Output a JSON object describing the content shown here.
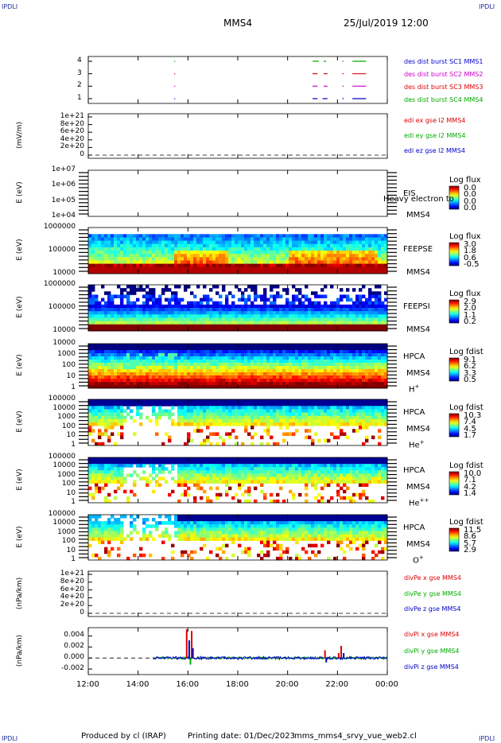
{
  "corners": {
    "tl": "IPDLI",
    "tr": "IPDLI",
    "bl": "IPDLI",
    "br": "IPDLI"
  },
  "header": {
    "mission": "MMS4",
    "date": "25/Jul/2019 12:00"
  },
  "footer": {
    "produced": "Produced by cl (IRAP)",
    "printing": "Printing date: 01/Dec/2023",
    "file": "mms_mms4_srvy_vue_web2.cl"
  },
  "x_ticks": [
    "12:00",
    "14:00",
    "16:00",
    "18:00",
    "20:00",
    "22:00",
    "00:00"
  ],
  "colors": {
    "blue": "#0000cc",
    "magenta": "#cc00cc",
    "red": "#dd0000",
    "green": "#00aa00"
  },
  "chart_data": [
    {
      "id": "burst",
      "type": "line",
      "yticks": [
        "4",
        "3",
        "2",
        "1"
      ],
      "legend": [
        {
          "label": "des dist burst SC1 MMS1",
          "color": "#0000cc"
        },
        {
          "label": "des dist burst SC2 MMS2",
          "color": "#cc00cc"
        },
        {
          "label": "des dist burst SC3 MMS3",
          "color": "#dd0000"
        },
        {
          "label": "des dist burst SC4 MMS4",
          "color": "#00aa00"
        }
      ],
      "segments": [
        {
          "y": 4,
          "color": "#00aa00",
          "ranges": [
            [
              21.0,
              21.25
            ],
            [
              21.45,
              21.55
            ],
            [
              22.2,
              22.25
            ],
            [
              22.6,
              23.15
            ]
          ]
        },
        {
          "y": 3,
          "color": "#dd0000",
          "ranges": [
            [
              21.0,
              21.2
            ],
            [
              21.45,
              21.6
            ],
            [
              22.2,
              22.25
            ],
            [
              22.6,
              23.15
            ]
          ]
        },
        {
          "y": 2,
          "color": "#cc00cc",
          "ranges": [
            [
              21.0,
              21.2
            ],
            [
              21.45,
              21.6
            ],
            [
              22.2,
              22.25
            ],
            [
              22.6,
              23.15
            ]
          ]
        },
        {
          "y": 1,
          "color": "#0000cc",
          "ranges": [
            [
              21.0,
              21.2
            ],
            [
              21.4,
              21.6
            ],
            [
              22.2,
              22.25
            ],
            [
              22.6,
              23.15
            ]
          ]
        }
      ],
      "dots": [
        [
          15.45,
          4
        ],
        [
          15.45,
          3
        ],
        [
          15.45,
          2
        ],
        [
          15.45,
          1
        ]
      ]
    },
    {
      "id": "edi",
      "type": "line",
      "ylabel": "(mV/m)",
      "yticks": [
        "1e+21",
        "8e+20",
        "6e+20",
        "4e+20",
        "2e+20",
        "0"
      ],
      "legend": [
        {
          "label": "edi ex gse l2 MMS4",
          "color": "#dd0000"
        },
        {
          "label": "edi ey gse l2 MMS4",
          "color": "#00aa00"
        },
        {
          "label": "edi ez gse l2 MMS4",
          "color": "#0000cc"
        }
      ]
    },
    {
      "id": "eis",
      "type": "heatmap",
      "ylabel": "E (eV)",
      "yticks": [
        "1e+07",
        "1e+06",
        "1e+05",
        "1e+04"
      ],
      "side": [
        "EIS",
        "MMS4"
      ],
      "overlay": "Heavy electron to",
      "cb_title": "Log flux",
      "cb_values": [
        "0.0",
        "0.0",
        "0.0",
        "0.0"
      ]
    },
    {
      "id": "feepse",
      "type": "heatmap",
      "ylabel": "E (eV)",
      "yticks": [
        "1000000",
        "100000",
        "10000"
      ],
      "side": [
        "FEEPSE",
        "MMS4"
      ],
      "cb_title": "Log flux",
      "cb_values": [
        "3.0",
        "1.8",
        "0.6",
        "-0.5"
      ]
    },
    {
      "id": "feepsi",
      "type": "heatmap",
      "ylabel": "E (eV)",
      "yticks": [
        "1000000",
        "100000",
        "10000"
      ],
      "side": [
        "FEEPSI",
        "MMS4"
      ],
      "cb_title": "Log flux",
      "cb_values": [
        "2.9",
        "2.0",
        "1.1",
        "0.2"
      ]
    },
    {
      "id": "hpca_h",
      "type": "heatmap",
      "ylabel": "E (eV)",
      "yticks": [
        "10000",
        "1000",
        "100",
        "10",
        "1"
      ],
      "side": [
        "HPCA",
        "MMS4"
      ],
      "ion": "H",
      "ion_sup": "+",
      "cb_title": "Log fdist",
      "cb_values": [
        "9.1",
        "6.2",
        "3.3",
        "0.5"
      ]
    },
    {
      "id": "hpca_he",
      "type": "heatmap",
      "ylabel": "E (eV)",
      "yticks": [
        "100000",
        "10000",
        "1000",
        "100",
        "10",
        "1"
      ],
      "side": [
        "HPCA",
        "MMS4"
      ],
      "ion": "He",
      "ion_sup": "+",
      "cb_title": "Log fdist",
      "cb_values": [
        "10.3",
        "7.4",
        "4.5",
        "1.7"
      ]
    },
    {
      "id": "hpca_hepp",
      "type": "heatmap",
      "ylabel": "E (eV)",
      "yticks": [
        "100000",
        "10000",
        "1000",
        "100",
        "10",
        "1"
      ],
      "side": [
        "HPCA",
        "MMS4"
      ],
      "ion": "He",
      "ion_sup": "++",
      "cb_title": "Log fdist",
      "cb_values": [
        "10.0",
        "7.1",
        "4.2",
        "1.4"
      ]
    },
    {
      "id": "hpca_o",
      "type": "heatmap",
      "ylabel": "E (eV)",
      "yticks": [
        "100000",
        "10000",
        "1000",
        "100",
        "10",
        "1"
      ],
      "side": [
        "HPCA",
        "MMS4"
      ],
      "ion": "O",
      "ion_sup": "+",
      "cb_title": "Log fdist",
      "cb_values": [
        "11.5",
        "8.6",
        "5.7",
        "2.9"
      ]
    },
    {
      "id": "divpe",
      "type": "line",
      "ylabel": "(nPa/km)",
      "yticks": [
        "1e+21",
        "8e+20",
        "6e+20",
        "4e+20",
        "2e+20",
        "0"
      ],
      "legend": [
        {
          "label": "divPe x gse MMS4",
          "color": "#dd0000"
        },
        {
          "label": "divPe y gse MMS4",
          "color": "#00aa00"
        },
        {
          "label": "divPe z gse MMS4",
          "color": "#0000cc"
        }
      ]
    },
    {
      "id": "divpi",
      "type": "line",
      "ylabel": "(nPa/km)",
      "yticks": [
        "0.004",
        "0.002",
        "0.000",
        "-0.002"
      ],
      "legend": [
        {
          "label": "divPi x gse MMS4",
          "color": "#dd0000"
        },
        {
          "label": "divPi y gse MMS4",
          "color": "#00aa00"
        },
        {
          "label": "divPi z gse MMS4",
          "color": "#0000cc"
        }
      ],
      "ylim": [
        -0.003,
        0.0055
      ],
      "spikes": [
        [
          15.95,
          0.0052,
          "#dd0000"
        ],
        [
          16.15,
          0.0049,
          "#dd0000"
        ],
        [
          16.05,
          0.0032,
          "#0000cc"
        ],
        [
          16.2,
          0.0018,
          "#0000cc"
        ],
        [
          16.1,
          -0.0012,
          "#00aa00"
        ],
        [
          21.5,
          0.0014,
          "#dd0000"
        ],
        [
          22.05,
          0.0009,
          "#dd0000"
        ],
        [
          22.15,
          0.0022,
          "#dd0000"
        ],
        [
          22.25,
          0.0009,
          "#0000cc"
        ],
        [
          21.55,
          -0.0008,
          "#0000cc"
        ]
      ]
    }
  ]
}
